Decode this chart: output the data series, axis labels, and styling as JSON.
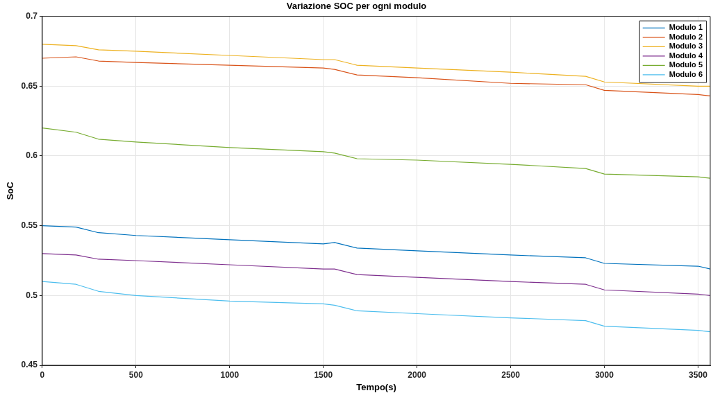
{
  "chart_data": {
    "type": "line",
    "title": "Variazione SOC per ogni modulo",
    "xlabel": "Tempo(s)",
    "ylabel": "SoC",
    "x": [
      0,
      180,
      300,
      500,
      1000,
      1500,
      1560,
      1680,
      2000,
      2500,
      2900,
      3000,
      3500,
      3565
    ],
    "series": [
      {
        "name": "Modulo 1",
        "color": "#0072bd",
        "values": [
          0.55,
          0.549,
          0.545,
          0.543,
          0.54,
          0.537,
          0.538,
          0.534,
          0.532,
          0.529,
          0.527,
          0.523,
          0.521,
          0.519
        ]
      },
      {
        "name": "Modulo 2",
        "color": "#d95319",
        "values": [
          0.67,
          0.671,
          0.668,
          0.667,
          0.665,
          0.663,
          0.662,
          0.658,
          0.656,
          0.652,
          0.651,
          0.647,
          0.644,
          0.643
        ]
      },
      {
        "name": "Modulo 3",
        "color": "#edb120",
        "values": [
          0.68,
          0.679,
          0.676,
          0.675,
          0.672,
          0.669,
          0.669,
          0.665,
          0.663,
          0.66,
          0.657,
          0.653,
          0.65,
          0.65
        ]
      },
      {
        "name": "Modulo 4",
        "color": "#7e2f8e",
        "values": [
          0.53,
          0.529,
          0.526,
          0.525,
          0.522,
          0.519,
          0.519,
          0.515,
          0.513,
          0.51,
          0.508,
          0.504,
          0.501,
          0.5
        ]
      },
      {
        "name": "Modulo 5",
        "color": "#77ac30",
        "values": [
          0.62,
          0.617,
          0.612,
          0.61,
          0.606,
          0.603,
          0.602,
          0.598,
          0.597,
          0.594,
          0.591,
          0.587,
          0.585,
          0.584
        ]
      },
      {
        "name": "Modulo 6",
        "color": "#4dbeee",
        "values": [
          0.51,
          0.508,
          0.503,
          0.5,
          0.496,
          0.494,
          0.493,
          0.489,
          0.487,
          0.484,
          0.482,
          0.478,
          0.475,
          0.474
        ]
      }
    ],
    "xlim": [
      0,
      3565
    ],
    "xticks": [
      0,
      500,
      1000,
      1500,
      2000,
      2500,
      3000,
      3500
    ],
    "ylim": [
      0.45,
      0.7
    ],
    "yticks": [
      0.45,
      0.5,
      0.55,
      0.6,
      0.65,
      0.7
    ],
    "grid": true,
    "legend": "top right",
    "marker": "none",
    "line_style": "solid"
  }
}
